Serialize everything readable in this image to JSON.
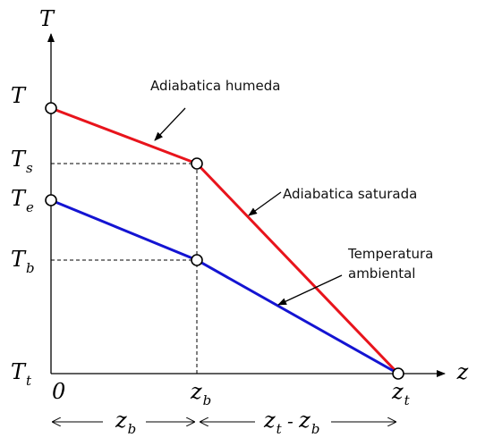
{
  "axes": {
    "y_label": "T",
    "x_label": "z",
    "y_ticks": [
      {
        "main": "T",
        "sub": ""
      },
      {
        "main": "T",
        "sub": "s"
      },
      {
        "main": "T",
        "sub": "e"
      },
      {
        "main": "T",
        "sub": "b"
      },
      {
        "main": "T",
        "sub": "t"
      }
    ],
    "x_ticks": [
      {
        "main": "0",
        "sub": ""
      },
      {
        "main": "z",
        "sub": "b"
      },
      {
        "main": "z",
        "sub": "t"
      }
    ]
  },
  "annotations": {
    "humid": "Adiabatica humeda",
    "saturated": "Adiabatica saturada",
    "ambient_line1": "Temperatura",
    "ambient_line2": "ambiental"
  },
  "spans": {
    "first": {
      "main": "z",
      "sub": "b"
    },
    "second": {
      "a_main": "z",
      "a_sub": "t",
      "sep": " - ",
      "b_main": "z",
      "b_sub": "b"
    }
  },
  "colors": {
    "red_line": "#e8141c",
    "blue_line": "#1414d2",
    "axis": "#000000"
  }
}
